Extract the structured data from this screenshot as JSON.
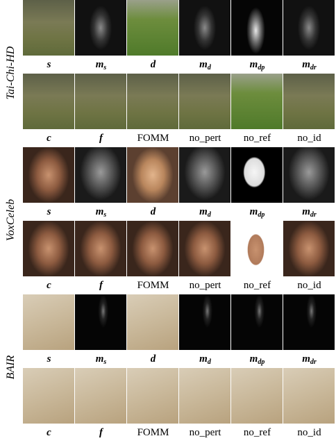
{
  "sections": [
    {
      "name": "Tai-Chi-HD",
      "rows": [
        {
          "labels": [
            {
              "text": "s"
            },
            {
              "text": "m",
              "sub": "s"
            },
            {
              "text": "d"
            },
            {
              "text": "m",
              "sub": "d"
            },
            {
              "text": "m",
              "sub": "dp"
            },
            {
              "text": "m",
              "sub": "dr"
            }
          ]
        },
        {
          "labels": [
            {
              "text": "c"
            },
            {
              "text": "f"
            },
            {
              "text": "FOMM"
            },
            {
              "text": "no_pert"
            },
            {
              "text": "no_ref"
            },
            {
              "text": "no_id"
            }
          ]
        }
      ]
    },
    {
      "name": "VoxCeleb",
      "rows": [
        {
          "labels": [
            {
              "text": "s"
            },
            {
              "text": "m",
              "sub": "s"
            },
            {
              "text": "d"
            },
            {
              "text": "m",
              "sub": "d"
            },
            {
              "text": "m",
              "sub": "dp"
            },
            {
              "text": "m",
              "sub": "dr"
            }
          ]
        },
        {
          "labels": [
            {
              "text": "c"
            },
            {
              "text": "f"
            },
            {
              "text": "FOMM"
            },
            {
              "text": "no_pert"
            },
            {
              "text": "no_ref"
            },
            {
              "text": "no_id"
            }
          ]
        }
      ]
    },
    {
      "name": "BAIR",
      "rows": [
        {
          "labels": [
            {
              "text": "s"
            },
            {
              "text": "m",
              "sub": "s"
            },
            {
              "text": "d"
            },
            {
              "text": "m",
              "sub": "d"
            },
            {
              "text": "m",
              "sub": "dp"
            },
            {
              "text": "m",
              "sub": "dr"
            }
          ]
        },
        {
          "labels": [
            {
              "text": "c"
            },
            {
              "text": "f"
            },
            {
              "text": "FOMM"
            },
            {
              "text": "no_pert"
            },
            {
              "text": "no_ref"
            },
            {
              "text": "no_id"
            }
          ]
        }
      ]
    }
  ]
}
